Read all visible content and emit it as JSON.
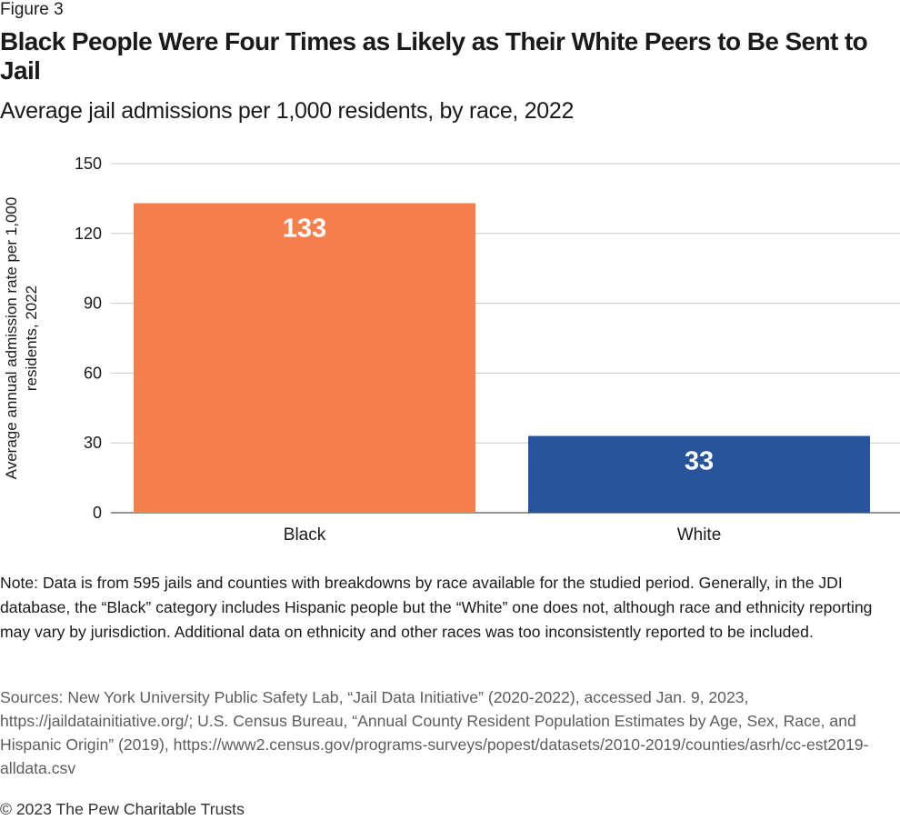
{
  "figure_label": "Figure 3",
  "title": "Black People Were Four Times as Likely as Their White Peers to Be Sent to Jail",
  "subtitle": "Average jail admissions per 1,000 residents, by race, 2022",
  "chart_data": {
    "type": "bar",
    "categories": [
      "Black",
      "White"
    ],
    "values": [
      133,
      33
    ],
    "data_labels": [
      "133",
      "33"
    ],
    "colors": [
      "#f47f4c",
      "#27549b"
    ],
    "ylabel": "Average annual admission rate per 1,000 residents, 2022",
    "xlabel": "",
    "ylim": [
      0,
      150
    ],
    "yticks": [
      0,
      30,
      60,
      90,
      120,
      150
    ],
    "grid": true,
    "gridline_color": "#c8c8c8",
    "axis_color": "#555555"
  },
  "note": "Note: Data is from 595 jails and counties with breakdowns by race available for the studied period. Generally, in the JDI database, the “Black” category includes Hispanic people but the “White” one does not, although race and ethnicity reporting may vary by jurisdiction. Additional data on ethnicity and other races was too inconsistently reported to be included.",
  "sources": "Sources: New York University Public Safety Lab, “Jail Data Initiative” (2020-2022), accessed Jan. 9, 2023, https://jaildatainitiative.org/; U.S. Census Bureau, “Annual County Resident Population Estimates by Age, Sex, Race, and Hispanic Origin” (2019), https://www2.census.gov/programs-surveys/popest/datasets/2010-2019/counties/asrh/cc-est2019-alldata.csv",
  "copyright": "© 2023 The Pew Charitable Trusts"
}
